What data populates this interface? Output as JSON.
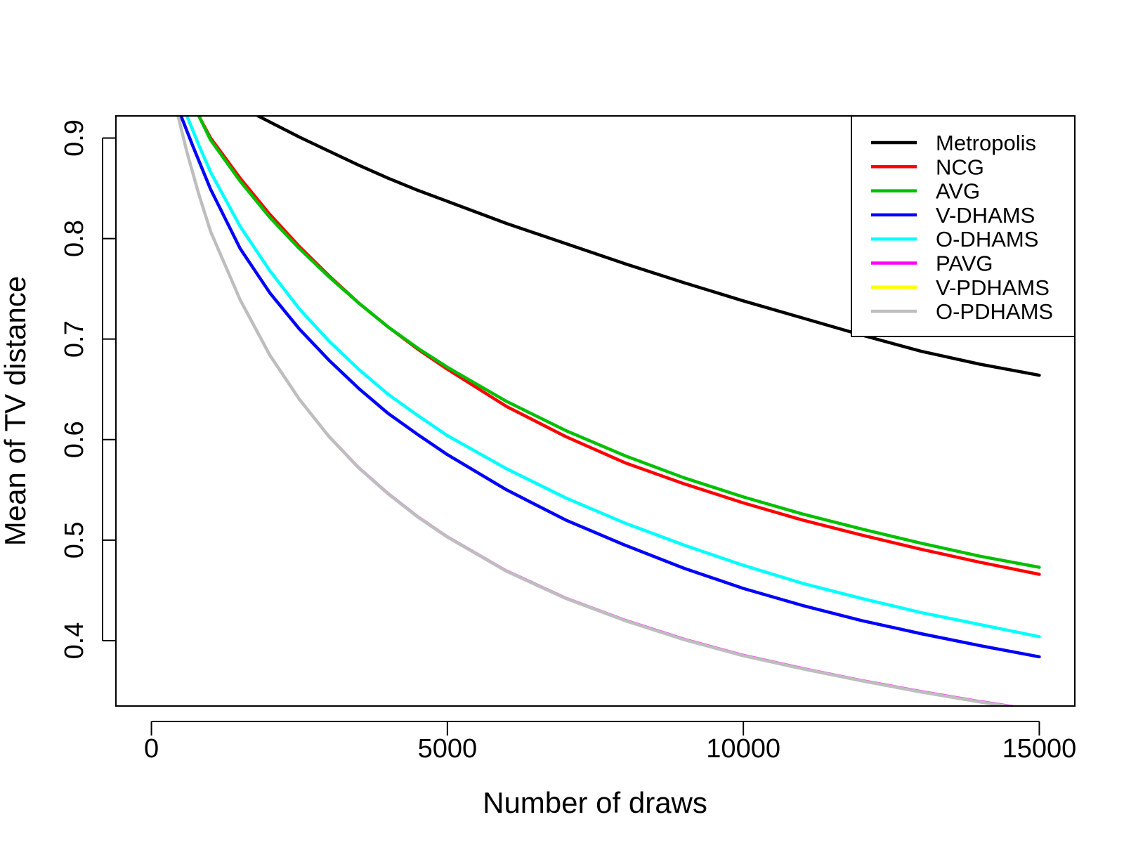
{
  "chart_data": {
    "type": "line",
    "title": "",
    "xlabel": "Number of draws",
    "ylabel": "Mean of TV distance",
    "xlim": [
      -600,
      15600
    ],
    "ylim": [
      0.335,
      0.922
    ],
    "xticks": [
      0,
      5000,
      10000,
      15000
    ],
    "yticks": [
      0.4,
      0.5,
      0.6,
      0.7,
      0.8,
      0.9
    ],
    "xtick_labels": [
      "0",
      "5000",
      "10000",
      "15000"
    ],
    "ytick_labels": [
      "0.4",
      "0.5",
      "0.6",
      "0.7",
      "0.8",
      "0.9"
    ],
    "grid": false,
    "legend_position": "top-right",
    "series": [
      {
        "name": "Metropolis",
        "color": "#000000",
        "x": [
          1800,
          2000,
          2500,
          3000,
          3500,
          4000,
          4500,
          5000,
          6000,
          7000,
          8000,
          9000,
          10000,
          11000,
          12000,
          13000,
          14000,
          15000
        ],
        "y": [
          0.922,
          0.916,
          0.901,
          0.887,
          0.873,
          0.86,
          0.848,
          0.837,
          0.815,
          0.795,
          0.775,
          0.756,
          0.738,
          0.721,
          0.704,
          0.688,
          0.675,
          0.664
        ]
      },
      {
        "name": "NCG",
        "color": "#ff0000",
        "x": [
          800,
          1000,
          1500,
          2000,
          2500,
          3000,
          3500,
          4000,
          4500,
          5000,
          6000,
          7000,
          8000,
          9000,
          10000,
          11000,
          12000,
          13000,
          14000,
          15000
        ],
        "y": [
          0.922,
          0.9,
          0.86,
          0.824,
          0.792,
          0.763,
          0.736,
          0.712,
          0.69,
          0.67,
          0.633,
          0.603,
          0.577,
          0.556,
          0.537,
          0.52,
          0.505,
          0.491,
          0.478,
          0.466
        ]
      },
      {
        "name": "AVG",
        "color": "#00c000",
        "x": [
          800,
          1000,
          1500,
          2000,
          2500,
          3000,
          3500,
          4000,
          4500,
          5000,
          6000,
          7000,
          8000,
          9000,
          10000,
          11000,
          12000,
          13000,
          14000,
          15000
        ],
        "y": [
          0.922,
          0.898,
          0.857,
          0.821,
          0.79,
          0.762,
          0.736,
          0.712,
          0.691,
          0.672,
          0.638,
          0.609,
          0.584,
          0.562,
          0.543,
          0.526,
          0.511,
          0.497,
          0.484,
          0.473
        ]
      },
      {
        "name": "V-DHAMS",
        "color": "#0000ff",
        "x": [
          500,
          700,
          1000,
          1500,
          2000,
          2500,
          3000,
          3500,
          4000,
          4500,
          5000,
          6000,
          7000,
          8000,
          9000,
          10000,
          11000,
          12000,
          13000,
          14000,
          15000
        ],
        "y": [
          0.922,
          0.892,
          0.849,
          0.79,
          0.746,
          0.71,
          0.679,
          0.651,
          0.626,
          0.605,
          0.585,
          0.55,
          0.52,
          0.495,
          0.472,
          0.452,
          0.435,
          0.42,
          0.407,
          0.395,
          0.384
        ]
      },
      {
        "name": "O-DHAMS",
        "color": "#00ffff",
        "x": [
          600,
          800,
          1000,
          1500,
          2000,
          2500,
          3000,
          3500,
          4000,
          4500,
          5000,
          6000,
          7000,
          8000,
          9000,
          10000,
          11000,
          12000,
          13000,
          14000,
          15000
        ],
        "y": [
          0.922,
          0.893,
          0.866,
          0.812,
          0.768,
          0.73,
          0.698,
          0.67,
          0.645,
          0.624,
          0.604,
          0.571,
          0.542,
          0.517,
          0.495,
          0.475,
          0.457,
          0.442,
          0.428,
          0.416,
          0.404
        ]
      },
      {
        "name": "PAVG",
        "color": "#ff00ff",
        "x": [
          450,
          600,
          800,
          1000,
          1500,
          2000,
          2500,
          3000,
          3500,
          4000,
          4500,
          5000,
          6000,
          7000,
          8000,
          9000,
          10000,
          11000,
          12000,
          13000,
          14000,
          15000
        ],
        "y": [
          0.922,
          0.887,
          0.845,
          0.808,
          0.74,
          0.685,
          0.641,
          0.604,
          0.573,
          0.547,
          0.524,
          0.504,
          0.47,
          0.443,
          0.421,
          0.402,
          0.386,
          0.373,
          0.361,
          0.35,
          0.34,
          0.331
        ]
      },
      {
        "name": "V-PDHAMS",
        "color": "#ffff00",
        "x": [
          450,
          600,
          800,
          1000,
          1500,
          2000,
          2500,
          3000,
          3500,
          4000,
          4500,
          5000,
          6000,
          7000,
          8000,
          9000,
          10000,
          11000,
          12000,
          13000,
          14000,
          15000
        ],
        "y": [
          0.922,
          0.886,
          0.844,
          0.807,
          0.739,
          0.684,
          0.64,
          0.603,
          0.572,
          0.546,
          0.523,
          0.503,
          0.469,
          0.442,
          0.42,
          0.401,
          0.385,
          0.372,
          0.36,
          0.349,
          0.339,
          0.33
        ]
      },
      {
        "name": "O-PDHAMS",
        "color": "#bebebe",
        "x": [
          450,
          600,
          800,
          1000,
          1500,
          2000,
          2500,
          3000,
          3500,
          4000,
          4500,
          5000,
          6000,
          7000,
          8000,
          9000,
          10000,
          11000,
          12000,
          13000,
          14000,
          15000
        ],
        "y": [
          0.922,
          0.886,
          0.844,
          0.807,
          0.739,
          0.684,
          0.64,
          0.603,
          0.572,
          0.546,
          0.523,
          0.503,
          0.469,
          0.442,
          0.42,
          0.401,
          0.385,
          0.372,
          0.36,
          0.349,
          0.339,
          0.33
        ]
      }
    ]
  }
}
